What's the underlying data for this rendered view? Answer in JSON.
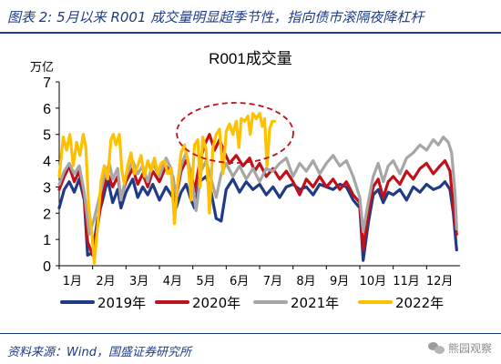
{
  "figure_title": "图表 2:   5月以来 R001 成交量明显超季节性，指向债市滚隔夜降杠杆",
  "source_text": "资料来源：Wind，国盛证券研究所",
  "watermark_text": "熊园观察",
  "chart_data": {
    "type": "line",
    "title": "R001成交量",
    "y_unit_label": "万亿",
    "ylim": [
      0,
      7
    ],
    "y_ticks": [
      0,
      1,
      2,
      3,
      4,
      5,
      6,
      7
    ],
    "x_tick_labels": [
      "1月",
      "2月",
      "3月",
      "4月",
      "5月",
      "6月",
      "7月",
      "8月",
      "9月",
      "10月",
      "11月",
      "12月"
    ],
    "x_domain_months": [
      0,
      12
    ],
    "grid": false,
    "legend_position": "bottom",
    "series": [
      {
        "name": "2019年",
        "color": "#1f3b86",
        "points": [
          [
            0.0,
            2.2
          ],
          [
            0.15,
            2.9
          ],
          [
            0.3,
            3.2
          ],
          [
            0.45,
            2.8
          ],
          [
            0.6,
            3.3
          ],
          [
            0.75,
            2.5
          ],
          [
            0.85,
            0.4
          ],
          [
            1.0,
            0.5
          ],
          [
            1.15,
            1.8
          ],
          [
            1.3,
            2.5
          ],
          [
            1.45,
            3.3
          ],
          [
            1.6,
            2.4
          ],
          [
            1.75,
            2.9
          ],
          [
            1.85,
            2.2
          ],
          [
            2.0,
            2.8
          ],
          [
            2.2,
            3.3
          ],
          [
            2.35,
            2.6
          ],
          [
            2.5,
            3.0
          ],
          [
            2.65,
            2.7
          ],
          [
            2.8,
            3.1
          ],
          [
            3.0,
            2.5
          ],
          [
            3.2,
            3.0
          ],
          [
            3.4,
            2.6
          ],
          [
            3.5,
            2.2
          ],
          [
            3.65,
            2.8
          ],
          [
            3.8,
            3.1
          ],
          [
            3.95,
            2.5
          ],
          [
            4.05,
            2.2
          ],
          [
            4.2,
            3.2
          ],
          [
            4.4,
            3.4
          ],
          [
            4.55,
            2.8
          ],
          [
            4.7,
            1.8
          ],
          [
            4.85,
            1.7
          ],
          [
            5.0,
            2.9
          ],
          [
            5.2,
            3.3
          ],
          [
            5.4,
            2.8
          ],
          [
            5.6,
            3.2
          ],
          [
            5.8,
            2.9
          ],
          [
            6.0,
            3.1
          ],
          [
            6.2,
            2.7
          ],
          [
            6.4,
            3.0
          ],
          [
            6.6,
            2.6
          ],
          [
            6.8,
            3.0
          ],
          [
            7.0,
            3.1
          ],
          [
            7.2,
            2.9
          ],
          [
            7.4,
            3.0
          ],
          [
            7.6,
            2.7
          ],
          [
            7.8,
            3.1
          ],
          [
            8.0,
            3.0
          ],
          [
            8.2,
            2.9
          ],
          [
            8.4,
            3.1
          ],
          [
            8.6,
            3.0
          ],
          [
            8.8,
            2.5
          ],
          [
            9.0,
            2.2
          ],
          [
            9.1,
            0.2
          ],
          [
            9.25,
            1.6
          ],
          [
            9.4,
            2.7
          ],
          [
            9.55,
            2.9
          ],
          [
            9.7,
            2.4
          ],
          [
            9.85,
            2.8
          ],
          [
            10.0,
            2.7
          ],
          [
            10.2,
            2.9
          ],
          [
            10.4,
            2.5
          ],
          [
            10.6,
            3.0
          ],
          [
            10.8,
            2.8
          ],
          [
            11.0,
            3.1
          ],
          [
            11.2,
            2.9
          ],
          [
            11.4,
            3.0
          ],
          [
            11.55,
            3.2
          ],
          [
            11.7,
            2.9
          ],
          [
            11.8,
            2.0
          ],
          [
            11.9,
            0.6
          ]
        ]
      },
      {
        "name": "2020年",
        "color": "#c0101a",
        "points": [
          [
            0.0,
            2.9
          ],
          [
            0.15,
            3.4
          ],
          [
            0.3,
            3.8
          ],
          [
            0.45,
            3.2
          ],
          [
            0.6,
            3.6
          ],
          [
            0.75,
            2.6
          ],
          [
            0.85,
            0.9
          ],
          [
            1.0,
            0.4
          ],
          [
            1.15,
            1.5
          ],
          [
            1.3,
            2.8
          ],
          [
            1.45,
            3.5
          ],
          [
            1.6,
            3.0
          ],
          [
            1.75,
            3.4
          ],
          [
            1.85,
            2.6
          ],
          [
            2.0,
            3.2
          ],
          [
            2.2,
            3.7
          ],
          [
            2.35,
            3.1
          ],
          [
            2.5,
            3.5
          ],
          [
            2.65,
            3.0
          ],
          [
            2.8,
            3.6
          ],
          [
            3.0,
            3.2
          ],
          [
            3.2,
            3.8
          ],
          [
            3.4,
            3.4
          ],
          [
            3.5,
            2.6
          ],
          [
            3.65,
            3.6
          ],
          [
            3.8,
            4.0
          ],
          [
            3.95,
            3.6
          ],
          [
            4.05,
            2.8
          ],
          [
            4.2,
            3.9
          ],
          [
            4.35,
            4.6
          ],
          [
            4.5,
            5.0
          ],
          [
            4.65,
            4.4
          ],
          [
            4.8,
            4.8
          ],
          [
            4.95,
            4.3
          ],
          [
            5.1,
            3.9
          ],
          [
            5.3,
            4.2
          ],
          [
            5.5,
            3.8
          ],
          [
            5.7,
            4.1
          ],
          [
            5.85,
            3.6
          ],
          [
            6.0,
            3.9
          ],
          [
            6.2,
            3.4
          ],
          [
            6.4,
            3.7
          ],
          [
            6.6,
            3.3
          ],
          [
            6.8,
            3.6
          ],
          [
            7.0,
            3.2
          ],
          [
            7.2,
            2.7
          ],
          [
            7.4,
            3.3
          ],
          [
            7.6,
            3.0
          ],
          [
            7.8,
            3.4
          ],
          [
            8.0,
            3.0
          ],
          [
            8.2,
            3.3
          ],
          [
            8.4,
            2.9
          ],
          [
            8.6,
            3.2
          ],
          [
            8.8,
            2.7
          ],
          [
            9.0,
            2.4
          ],
          [
            9.1,
            0.6
          ],
          [
            9.25,
            2.0
          ],
          [
            9.4,
            3.0
          ],
          [
            9.55,
            3.3
          ],
          [
            9.7,
            2.6
          ],
          [
            9.85,
            3.2
          ],
          [
            10.0,
            3.4
          ],
          [
            10.2,
            3.1
          ],
          [
            10.4,
            3.6
          ],
          [
            10.6,
            3.3
          ],
          [
            10.8,
            3.7
          ],
          [
            11.0,
            3.9
          ],
          [
            11.2,
            3.5
          ],
          [
            11.4,
            3.8
          ],
          [
            11.55,
            4.0
          ],
          [
            11.7,
            3.6
          ],
          [
            11.8,
            2.2
          ],
          [
            11.9,
            1.2
          ]
        ]
      },
      {
        "name": "2021年",
        "color": "#a6a6a6",
        "points": [
          [
            0.0,
            3.1
          ],
          [
            0.15,
            3.6
          ],
          [
            0.3,
            3.9
          ],
          [
            0.45,
            3.5
          ],
          [
            0.6,
            3.8
          ],
          [
            0.75,
            2.8
          ],
          [
            0.9,
            1.2
          ],
          [
            1.05,
            1.8
          ],
          [
            1.2,
            2.6
          ],
          [
            1.35,
            3.4
          ],
          [
            1.5,
            3.9
          ],
          [
            1.6,
            3.3
          ],
          [
            1.75,
            3.7
          ],
          [
            1.85,
            2.5
          ],
          [
            2.0,
            3.4
          ],
          [
            2.2,
            4.0
          ],
          [
            2.35,
            3.5
          ],
          [
            2.5,
            3.8
          ],
          [
            2.65,
            3.2
          ],
          [
            2.8,
            3.9
          ],
          [
            3.0,
            3.4
          ],
          [
            3.2,
            4.1
          ],
          [
            3.35,
            3.7
          ],
          [
            3.5,
            2.7
          ],
          [
            3.65,
            3.8
          ],
          [
            3.8,
            4.3
          ],
          [
            3.95,
            3.5
          ],
          [
            4.1,
            2.1
          ],
          [
            4.25,
            3.6
          ],
          [
            4.4,
            4.0
          ],
          [
            4.55,
            3.3
          ],
          [
            4.7,
            2.6
          ],
          [
            4.85,
            3.5
          ],
          [
            5.0,
            3.9
          ],
          [
            5.2,
            3.4
          ],
          [
            5.4,
            3.8
          ],
          [
            5.6,
            3.3
          ],
          [
            5.8,
            3.7
          ],
          [
            6.0,
            3.2
          ],
          [
            6.2,
            3.7
          ],
          [
            6.4,
            3.6
          ],
          [
            6.6,
            3.9
          ],
          [
            6.8,
            4.1
          ],
          [
            7.0,
            3.4
          ],
          [
            7.2,
            3.9
          ],
          [
            7.4,
            3.6
          ],
          [
            7.6,
            4.0
          ],
          [
            7.8,
            3.5
          ],
          [
            8.0,
            3.9
          ],
          [
            8.2,
            4.2
          ],
          [
            8.4,
            3.8
          ],
          [
            8.6,
            4.0
          ],
          [
            8.8,
            3.4
          ],
          [
            9.0,
            2.6
          ],
          [
            9.1,
            1.3
          ],
          [
            9.25,
            2.4
          ],
          [
            9.4,
            3.4
          ],
          [
            9.55,
            3.9
          ],
          [
            9.7,
            3.2
          ],
          [
            9.85,
            3.8
          ],
          [
            10.0,
            4.0
          ],
          [
            10.2,
            3.5
          ],
          [
            10.4,
            4.1
          ],
          [
            10.6,
            4.3
          ],
          [
            10.8,
            4.6
          ],
          [
            11.0,
            4.4
          ],
          [
            11.2,
            4.8
          ],
          [
            11.35,
            4.6
          ],
          [
            11.5,
            4.9
          ],
          [
            11.65,
            4.7
          ],
          [
            11.75,
            4.3
          ],
          [
            11.85,
            2.8
          ],
          [
            11.9,
            1.4
          ]
        ]
      },
      {
        "name": "2022年",
        "color": "#ffc000",
        "points": [
          [
            0.0,
            3.4
          ],
          [
            0.12,
            4.9
          ],
          [
            0.22,
            4.4
          ],
          [
            0.32,
            5.0
          ],
          [
            0.42,
            3.8
          ],
          [
            0.52,
            4.7
          ],
          [
            0.62,
            4.2
          ],
          [
            0.72,
            5.0
          ],
          [
            0.8,
            4.5
          ],
          [
            0.88,
            2.3
          ],
          [
            0.98,
            1.2
          ],
          [
            1.05,
            0.1
          ],
          [
            1.15,
            1.5
          ],
          [
            1.25,
            3.2
          ],
          [
            1.35,
            3.8
          ],
          [
            1.45,
            3.3
          ],
          [
            1.55,
            4.8
          ],
          [
            1.62,
            5.0
          ],
          [
            1.7,
            4.6
          ],
          [
            1.8,
            5.0
          ],
          [
            1.88,
            3.6
          ],
          [
            1.95,
            3.1
          ],
          [
            2.05,
            3.8
          ],
          [
            2.15,
            4.3
          ],
          [
            2.25,
            3.5
          ],
          [
            2.35,
            3.8
          ],
          [
            2.45,
            4.2
          ],
          [
            2.55,
            3.4
          ],
          [
            2.65,
            4.0
          ],
          [
            2.75,
            3.6
          ],
          [
            2.85,
            4.1
          ],
          [
            2.95,
            3.5
          ],
          [
            3.05,
            3.9
          ],
          [
            3.15,
            4.0
          ],
          [
            3.25,
            3.5
          ],
          [
            3.35,
            3.7
          ],
          [
            3.45,
            1.6
          ],
          [
            3.55,
            3.2
          ],
          [
            3.65,
            4.3
          ],
          [
            3.75,
            4.6
          ],
          [
            3.85,
            4.0
          ],
          [
            3.95,
            2.5
          ],
          [
            4.05,
            4.6
          ],
          [
            4.15,
            4.8
          ],
          [
            4.22,
            3.0
          ],
          [
            4.3,
            4.9
          ],
          [
            4.4,
            4.4
          ],
          [
            4.5,
            2.0
          ],
          [
            4.6,
            4.5
          ],
          [
            4.7,
            5.0
          ],
          [
            4.8,
            5.2
          ],
          [
            4.9,
            3.5
          ],
          [
            5.0,
            5.1
          ],
          [
            5.1,
            5.4
          ],
          [
            5.2,
            5.0
          ],
          [
            5.3,
            5.5
          ],
          [
            5.38,
            4.5
          ],
          [
            5.45,
            5.6
          ],
          [
            5.55,
            5.5
          ],
          [
            5.65,
            5.7
          ],
          [
            5.72,
            5.0
          ],
          [
            5.8,
            5.8
          ],
          [
            5.9,
            5.6
          ],
          [
            6.0,
            5.8
          ],
          [
            6.08,
            5.3
          ],
          [
            6.15,
            5.6
          ],
          [
            6.22,
            3.8
          ],
          [
            6.3,
            5.2
          ],
          [
            6.38,
            5.5
          ],
          [
            6.45,
            5.5
          ]
        ]
      }
    ]
  }
}
